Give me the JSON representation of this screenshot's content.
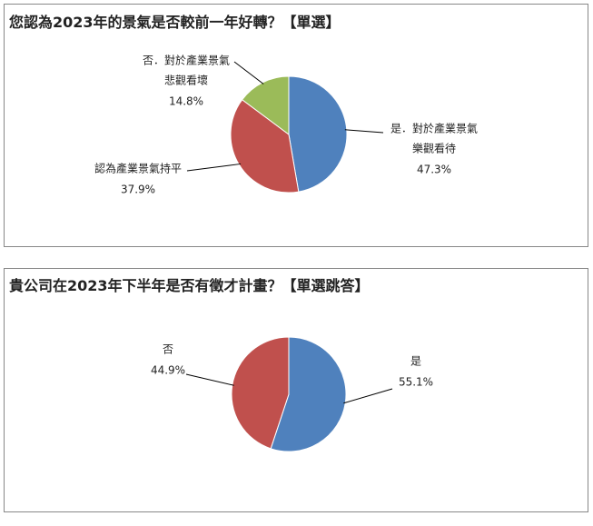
{
  "chart_data": [
    {
      "type": "pie",
      "title": "您認為2023年的景氣是否較前一年好轉？【單選】",
      "categories": [
        [
          "是．對於產業景氣",
          "樂觀看待"
        ],
        [
          "認為產業景氣持平"
        ],
        [
          "否．對於產業景氣",
          "悲觀看壞"
        ]
      ],
      "values": [
        47.3,
        37.9,
        14.8
      ],
      "value_labels": [
        "47.3%",
        "37.9%",
        "14.8%"
      ],
      "colors": [
        "#4f81bd",
        "#c0504d",
        "#9bbb59"
      ]
    },
    {
      "type": "pie",
      "title": "貴公司在2023年下半年是否有徵才計畫？【單選跳答】",
      "categories": [
        [
          "是"
        ],
        [
          "否"
        ]
      ],
      "values": [
        55.1,
        44.9
      ],
      "value_labels": [
        "55.1%",
        "44.9%"
      ],
      "colors": [
        "#4f81bd",
        "#c0504d"
      ]
    }
  ]
}
